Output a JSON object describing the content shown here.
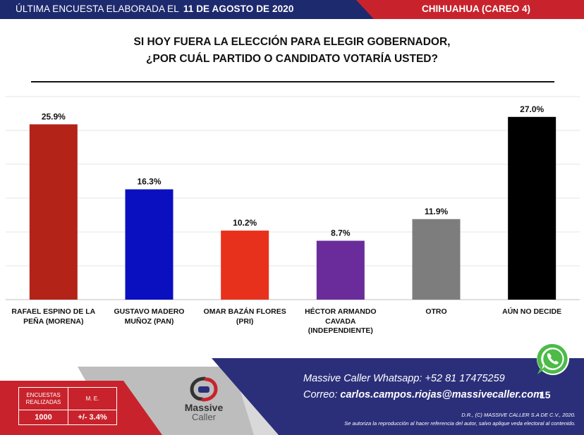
{
  "header": {
    "left_text": "ÚLTIMA ENCUESTA ELABORADA EL",
    "date": "11 DE AGOSTO DE 2020",
    "right_text": "CHIHUAHUA (CAREO 4)"
  },
  "question": {
    "line1": "SI HOY FUERA LA ELECCIÓN PARA ELEGIR GOBERNADOR,",
    "line2": "¿POR CUÁL PARTIDO O CANDIDATO VOTARÍA USTED?"
  },
  "chart_data": {
    "type": "bar",
    "categories": [
      "RAFAEL ESPINO DE LA PEÑA (MORENA)",
      "GUSTAVO MADERO MUÑOZ (PAN)",
      "OMAR BAZÁN FLORES (PRI)",
      "HÉCTOR ARMANDO CAVADA (INDEPENDIENTE)",
      "OTRO",
      "AÚN NO DECIDE"
    ],
    "values": [
      25.9,
      16.3,
      10.2,
      8.7,
      11.9,
      27.0
    ],
    "value_labels": [
      "25.9%",
      "16.3%",
      "10.2%",
      "8.7%",
      "11.9%",
      "27.0%"
    ],
    "colors": [
      "#b42318",
      "#0a10c0",
      "#e8311c",
      "#6a2c9a",
      "#7d7d7d",
      "#000000"
    ],
    "ylim": [
      0,
      30
    ],
    "grid": true,
    "legend": "none"
  },
  "footer": {
    "whatsapp": "Massive Caller Whatsapp:  +52 81 17475259",
    "email_label": "Correo:",
    "email": "carlos.campos.riojas@massivecaller.com",
    "page_number": "15",
    "legal1": "D.R., (C) MASSIVE CALLER S.A DE C.V., 2020.",
    "legal2": "Se autoriza la reproducción al hacer referencia del autor, salvo aplique veda electoral al contenido.",
    "stats": {
      "encuestas_label": "ENCUESTAS REALIZADAS",
      "me_label": "M. E.",
      "encuestas_value": "1000",
      "me_value": "+/- 3.4%"
    },
    "logo_text1": "Massive",
    "logo_text2": "Caller"
  },
  "colors": {
    "header_navy": "#1e2a6e",
    "header_red": "#c8232c",
    "footer_navy": "#2b2f7a",
    "footer_red": "#c8232c",
    "footer_gray": "#d9d9d9",
    "whatsapp_green": "#4cbb47"
  }
}
